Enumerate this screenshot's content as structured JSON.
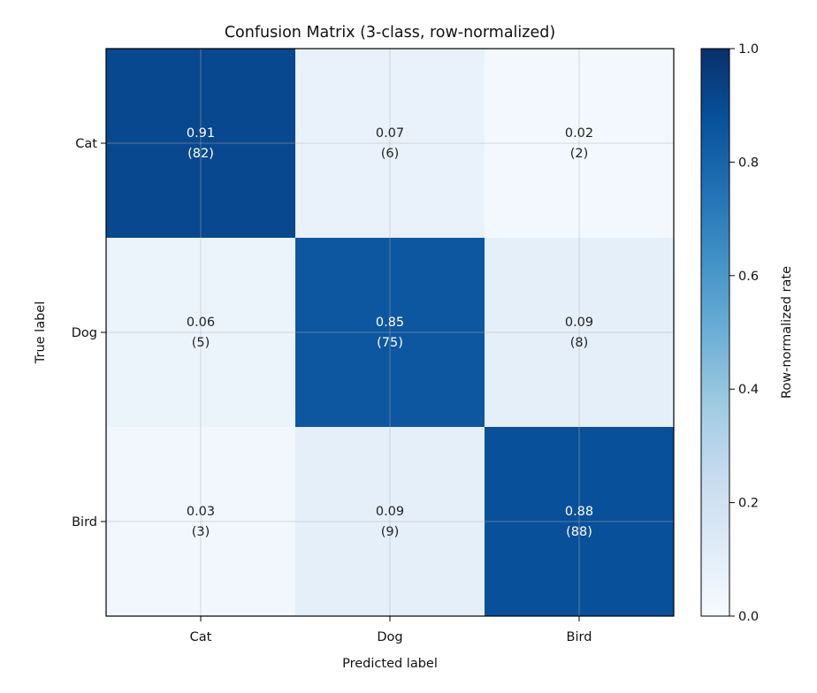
{
  "chart_data": {
    "type": "heatmap",
    "title": "Confusion Matrix (3-class, row-normalized)",
    "xlabel": "Predicted label",
    "ylabel": "True label",
    "x_categories": [
      "Cat",
      "Dog",
      "Bird"
    ],
    "y_categories": [
      "Cat",
      "Dog",
      "Bird"
    ],
    "rates": [
      [
        0.91,
        0.07,
        0.02
      ],
      [
        0.06,
        0.85,
        0.09
      ],
      [
        0.03,
        0.09,
        0.88
      ]
    ],
    "counts": [
      [
        82,
        6,
        2
      ],
      [
        5,
        75,
        8
      ],
      [
        3,
        9,
        88
      ]
    ],
    "rate_labels": [
      [
        "0.91",
        "0.07",
        "0.02"
      ],
      [
        "0.06",
        "0.85",
        "0.09"
      ],
      [
        "0.03",
        "0.09",
        "0.88"
      ]
    ],
    "count_labels": [
      [
        "(82)",
        "(6)",
        "(2)"
      ],
      [
        "(5)",
        "(75)",
        "(8)"
      ],
      [
        "(3)",
        "(9)",
        "(88)"
      ]
    ],
    "colorbar": {
      "label": "Row-normalized rate",
      "range": [
        0.0,
        1.0
      ],
      "ticks": [
        0.0,
        0.2,
        0.4,
        0.6,
        0.8,
        1.0
      ],
      "tick_labels": [
        "0.0",
        "0.2",
        "0.4",
        "0.6",
        "0.8",
        "1.0"
      ],
      "colormap": "Blues"
    },
    "grid": true
  }
}
